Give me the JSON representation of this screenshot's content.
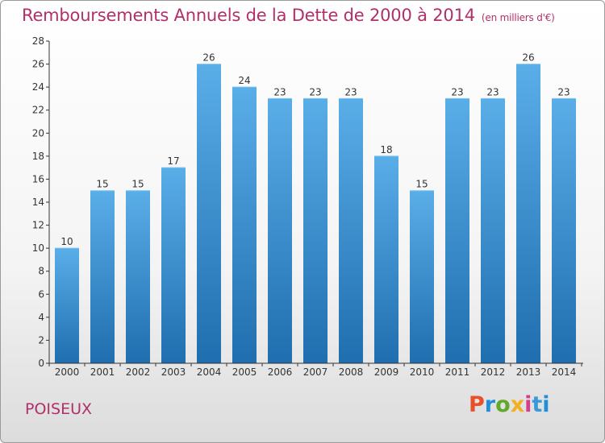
{
  "page": {
    "title": "Remboursements Annuels de la Dette de 2000 à 2014",
    "subtitle": "(en milliers d'€)",
    "place": "POISEUX",
    "logo_text": "Proxiti"
  },
  "colors": {
    "title": "#b0306a",
    "bar_top": "#5aaee8",
    "bar_bottom": "#1f6eaf",
    "logo": [
      "#e8502a",
      "#1f8fd9",
      "#62a82b",
      "#f0b020",
      "#d63d8a",
      "#3a9ad9",
      "#1f8fd9"
    ]
  },
  "chart_data": {
    "type": "bar",
    "title": "Remboursements Annuels de la Dette de 2000 à 2014",
    "subtitle": "(en milliers d'€)",
    "categories": [
      "2000",
      "2001",
      "2002",
      "2003",
      "2004",
      "2005",
      "2006",
      "2007",
      "2008",
      "2009",
      "2010",
      "2011",
      "2012",
      "2013",
      "2014"
    ],
    "values": [
      10,
      15,
      15,
      17,
      26,
      24,
      23,
      23,
      23,
      18,
      15,
      23,
      23,
      26,
      23
    ],
    "ylim": [
      0,
      28
    ],
    "yticks": [
      0,
      2,
      4,
      6,
      8,
      10,
      12,
      14,
      16,
      18,
      20,
      22,
      24,
      26,
      28
    ],
    "grid": false,
    "legend": "none"
  }
}
